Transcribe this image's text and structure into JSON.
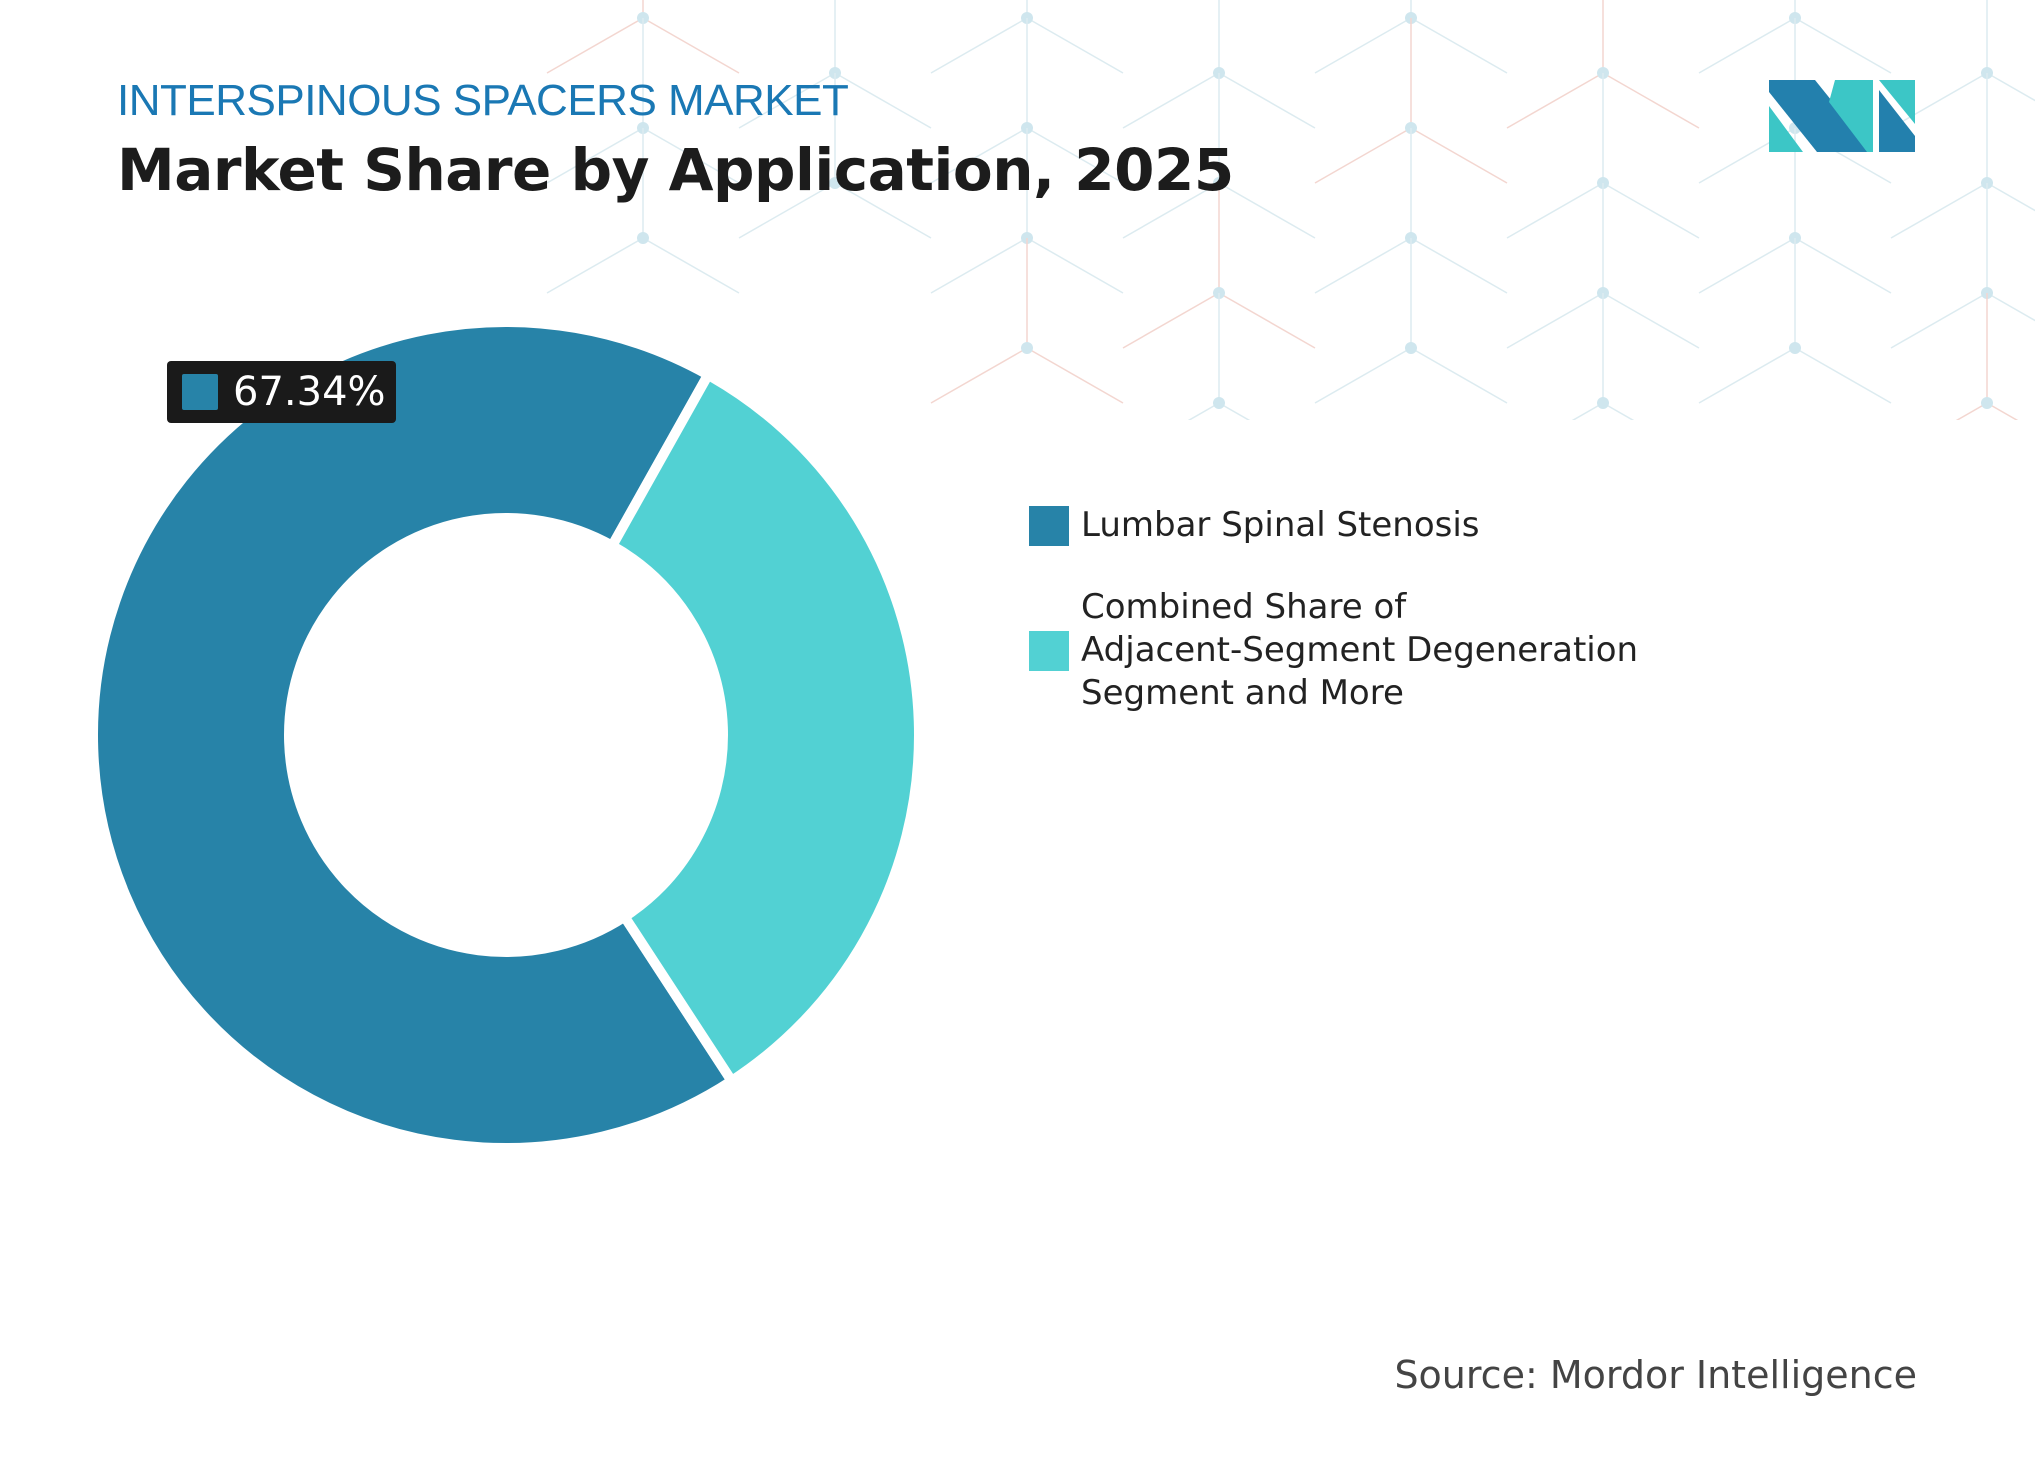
{
  "header": {
    "kicker": "INTERSPINOUS SPACERS MARKET",
    "title": "Market Share by Application, 2025"
  },
  "chart_data": {
    "type": "pie",
    "style": "donut",
    "categories": [
      "Lumbar Spinal Stenosis",
      "Combined Share of Adjacent-Segment Degeneration Segment and More"
    ],
    "values": [
      67.34,
      32.66
    ],
    "colors": [
      "#2783a8",
      "#52d1d3"
    ],
    "data_labels": [
      "67.34%"
    ],
    "legend": "right"
  },
  "legend": {
    "items": [
      {
        "label": "Lumbar Spinal Stenosis",
        "color": "#2783a8"
      },
      {
        "label_lines": [
          "Combined Share of",
          "Adjacent-Segment Degeneration",
          "Segment and More"
        ],
        "color": "#52d1d3"
      }
    ]
  },
  "callout": {
    "value": "67.34%"
  },
  "footer": {
    "source": "Source: Mordor Intelligence"
  },
  "logo": {
    "icon": "mordor-intelligence-logo",
    "colors": [
      "#2380ad",
      "#3cc6c6"
    ]
  }
}
